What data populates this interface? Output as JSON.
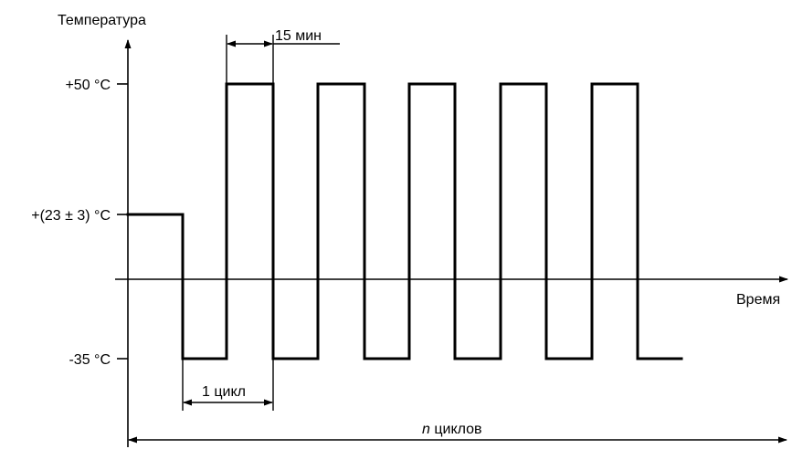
{
  "diagram": {
    "y_axis_label": "Температура",
    "x_axis_label": "Время",
    "levels": {
      "high": "+50 °C",
      "initial": "+(23 ± 3) °C",
      "low": "-35 °C"
    },
    "dwell_label": "15 мин",
    "cycle_label": "1 цикл",
    "n_cycles_italic": "n",
    "n_cycles_text": " циклов"
  },
  "chart_data": {
    "type": "line",
    "title": "",
    "xlabel": "Время",
    "ylabel": "Температура",
    "y_ticks": [
      "-35 °C",
      "+(23 ± 3) °C",
      "+50 °C"
    ],
    "y_values_c": [
      -35,
      23,
      50
    ],
    "cycles_shown": 5,
    "dwell_time_label": "15 мин",
    "annotations": [
      "15 мин",
      "1 цикл",
      "n циклов"
    ]
  }
}
